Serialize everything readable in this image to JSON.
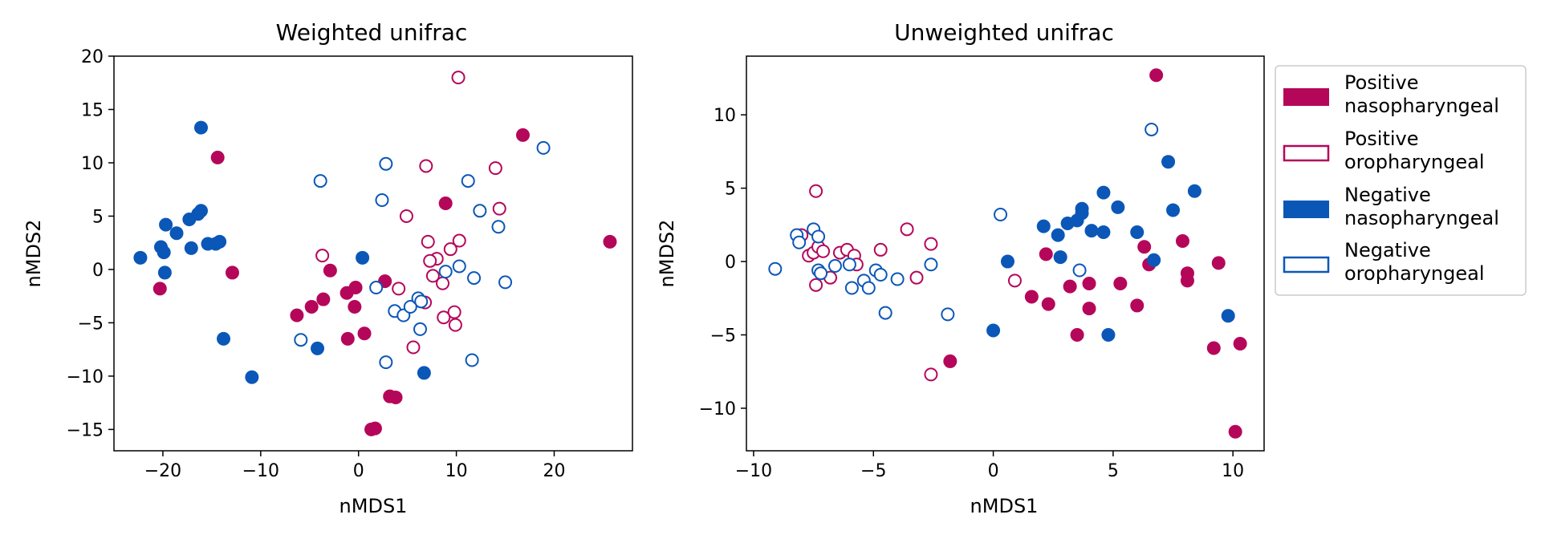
{
  "colors": {
    "positive": "#b5075a",
    "negative": "#0b57b8"
  },
  "legend": {
    "placement": "right of second panel",
    "items": [
      {
        "line1": "Positive",
        "line2": "nasopharyngeal",
        "color": "#b5075a",
        "filled": true
      },
      {
        "line1": "Positive",
        "line2": "oropharyngeal",
        "color": "#b5075a",
        "filled": false
      },
      {
        "line1": "Negative",
        "line2": "nasopharyngeal",
        "color": "#0b57b8",
        "filled": true
      },
      {
        "line1": "Negative",
        "line2": "oropharyngeal",
        "color": "#0b57b8",
        "filled": false
      }
    ]
  },
  "chart_data": [
    {
      "type": "scatter",
      "title": "Weighted unifrac",
      "xlabel": "nMDS1",
      "ylabel": "nMDS2",
      "xlim": [
        -25,
        28
      ],
      "ylim": [
        -17,
        20
      ],
      "xticks": [
        -20,
        -10,
        0,
        10,
        20
      ],
      "xtick_labels": [
        "−20",
        "−10",
        "0",
        "10",
        "20"
      ],
      "yticks": [
        -15,
        -10,
        -5,
        0,
        5,
        10,
        15,
        20
      ],
      "ytick_labels": [
        "−15",
        "−10",
        "−5",
        "0",
        "5",
        "10",
        "15",
        "20"
      ],
      "grid": false,
      "series": [
        {
          "name": "Positive nasopharyngeal",
          "color": "#b5075a",
          "filled": true,
          "points": [
            [
              -14.4,
              10.5
            ],
            [
              -20.3,
              -1.8
            ],
            [
              -12.9,
              -0.3
            ],
            [
              -6.3,
              -4.3
            ],
            [
              -4.8,
              -3.5
            ],
            [
              -3.6,
              -2.8
            ],
            [
              -2.9,
              -0.1
            ],
            [
              -1.2,
              -2.2
            ],
            [
              -0.3,
              -1.7
            ],
            [
              -0.4,
              -3.5
            ],
            [
              0.6,
              -6.0
            ],
            [
              -1.1,
              -6.5
            ],
            [
              2.7,
              -1.1
            ],
            [
              3.2,
              -11.9
            ],
            [
              3.8,
              -12.0
            ],
            [
              1.3,
              -15.0
            ],
            [
              1.7,
              -14.9
            ],
            [
              8.9,
              6.2
            ],
            [
              16.8,
              12.6
            ],
            [
              25.7,
              2.6
            ]
          ]
        },
        {
          "name": "Positive oropharyngeal",
          "color": "#b5075a",
          "filled": false,
          "points": [
            [
              10.2,
              18.0
            ],
            [
              6.9,
              9.7
            ],
            [
              14.0,
              9.5
            ],
            [
              14.4,
              5.7
            ],
            [
              4.9,
              5.0
            ],
            [
              7.1,
              2.6
            ],
            [
              10.3,
              2.7
            ],
            [
              9.4,
              1.9
            ],
            [
              8.0,
              1.0
            ],
            [
              7.3,
              0.8
            ],
            [
              7.6,
              -0.6
            ],
            [
              -3.7,
              1.3
            ],
            [
              4.1,
              -1.8
            ],
            [
              8.6,
              -1.3
            ],
            [
              6.8,
              -3.1
            ],
            [
              8.7,
              -4.5
            ],
            [
              9.8,
              -4.0
            ],
            [
              9.9,
              -5.2
            ],
            [
              5.6,
              -7.3
            ]
          ]
        },
        {
          "name": "Negative nasopharyngeal",
          "color": "#0b57b8",
          "filled": true,
          "points": [
            [
              -16.1,
              13.3
            ],
            [
              -22.3,
              1.1
            ],
            [
              -20.2,
              2.1
            ],
            [
              -19.9,
              1.6
            ],
            [
              -19.7,
              4.2
            ],
            [
              -19.8,
              -0.3
            ],
            [
              -18.6,
              3.4
            ],
            [
              -17.3,
              4.7
            ],
            [
              -17.1,
              2.0
            ],
            [
              -16.4,
              5.2
            ],
            [
              -16.1,
              5.5
            ],
            [
              -15.4,
              2.4
            ],
            [
              -14.6,
              2.4
            ],
            [
              -14.2,
              2.6
            ],
            [
              -13.8,
              -6.5
            ],
            [
              -10.9,
              -10.1
            ],
            [
              -4.2,
              -7.4
            ],
            [
              0.4,
              1.1
            ],
            [
              6.7,
              -9.7
            ]
          ]
        },
        {
          "name": "Negative oropharyngeal",
          "color": "#0b57b8",
          "filled": false,
          "points": [
            [
              -3.9,
              8.3
            ],
            [
              2.8,
              9.9
            ],
            [
              2.4,
              6.5
            ],
            [
              11.2,
              8.3
            ],
            [
              12.4,
              5.5
            ],
            [
              14.3,
              4.0
            ],
            [
              18.9,
              11.4
            ],
            [
              10.3,
              0.3
            ],
            [
              8.9,
              -0.2
            ],
            [
              11.8,
              -0.8
            ],
            [
              15.0,
              -1.2
            ],
            [
              1.8,
              -1.7
            ],
            [
              3.7,
              -3.9
            ],
            [
              4.6,
              -4.3
            ],
            [
              5.3,
              -3.5
            ],
            [
              6.1,
              -2.7
            ],
            [
              6.4,
              -3.0
            ],
            [
              6.3,
              -5.6
            ],
            [
              2.8,
              -8.7
            ],
            [
              11.6,
              -8.5
            ],
            [
              -5.9,
              -6.6
            ]
          ]
        }
      ]
    },
    {
      "type": "scatter",
      "title": "Unweighted unifrac",
      "xlabel": "nMDS1",
      "ylabel": "nMDS2",
      "xlim": [
        -10.3,
        11.3
      ],
      "ylim": [
        -12.9,
        14.0
      ],
      "xticks": [
        -10,
        -5,
        0,
        5,
        10
      ],
      "xtick_labels": [
        "−10",
        "−5",
        "0",
        "5",
        "10"
      ],
      "yticks": [
        -10,
        -5,
        0,
        5,
        10
      ],
      "ytick_labels": [
        "−10",
        "−5",
        "0",
        "5",
        "10"
      ],
      "grid": false,
      "series": [
        {
          "name": "Positive nasopharyngeal",
          "color": "#b5075a",
          "filled": true,
          "points": [
            [
              6.8,
              12.7
            ],
            [
              -1.8,
              -6.8
            ],
            [
              1.6,
              -2.4
            ],
            [
              2.2,
              0.5
            ],
            [
              2.3,
              -2.9
            ],
            [
              3.2,
              -1.7
            ],
            [
              3.5,
              -5.0
            ],
            [
              4.0,
              -1.5
            ],
            [
              4.0,
              -3.2
            ],
            [
              5.3,
              -1.5
            ],
            [
              6.0,
              -3.0
            ],
            [
              6.3,
              1.0
            ],
            [
              6.5,
              -0.2
            ],
            [
              7.9,
              1.4
            ],
            [
              8.1,
              -0.8
            ],
            [
              8.1,
              -1.3
            ],
            [
              9.2,
              -5.9
            ],
            [
              9.4,
              -0.1
            ],
            [
              10.3,
              -5.6
            ],
            [
              10.1,
              -11.6
            ]
          ]
        },
        {
          "name": "Positive oropharyngeal",
          "color": "#b5075a",
          "filled": false,
          "points": [
            [
              -7.4,
              4.8
            ],
            [
              -8.0,
              1.8
            ],
            [
              -7.7,
              0.4
            ],
            [
              -7.5,
              0.6
            ],
            [
              -7.3,
              1.0
            ],
            [
              -7.1,
              0.7
            ],
            [
              -6.8,
              -1.1
            ],
            [
              -6.4,
              0.6
            ],
            [
              -6.1,
              0.8
            ],
            [
              -5.8,
              0.4
            ],
            [
              -5.7,
              -0.2
            ],
            [
              -7.4,
              -1.6
            ],
            [
              -4.7,
              0.8
            ],
            [
              -3.6,
              2.2
            ],
            [
              -3.2,
              -1.1
            ],
            [
              -2.6,
              1.2
            ],
            [
              -2.6,
              -7.7
            ],
            [
              0.9,
              -1.3
            ]
          ]
        },
        {
          "name": "Negative nasopharyngeal",
          "color": "#0b57b8",
          "filled": true,
          "points": [
            [
              0.6,
              0.0
            ],
            [
              0.0,
              -4.7
            ],
            [
              2.1,
              2.4
            ],
            [
              2.7,
              1.8
            ],
            [
              2.8,
              0.3
            ],
            [
              3.1,
              2.6
            ],
            [
              3.5,
              2.8
            ],
            [
              3.7,
              3.6
            ],
            [
              3.7,
              3.3
            ],
            [
              4.1,
              2.1
            ],
            [
              4.6,
              4.7
            ],
            [
              4.6,
              2.0
            ],
            [
              4.8,
              -5.0
            ],
            [
              5.2,
              3.7
            ],
            [
              6.0,
              2.0
            ],
            [
              6.7,
              0.1
            ],
            [
              7.3,
              6.8
            ],
            [
              7.5,
              3.5
            ],
            [
              8.4,
              4.8
            ],
            [
              9.8,
              -3.7
            ]
          ]
        },
        {
          "name": "Negative oropharyngeal",
          "color": "#0b57b8",
          "filled": false,
          "points": [
            [
              6.6,
              9.0
            ],
            [
              0.3,
              3.2
            ],
            [
              3.6,
              -0.6
            ],
            [
              -9.1,
              -0.5
            ],
            [
              -8.2,
              1.8
            ],
            [
              -8.1,
              1.3
            ],
            [
              -7.5,
              2.2
            ],
            [
              -7.3,
              1.7
            ],
            [
              -7.3,
              -0.6
            ],
            [
              -7.2,
              -0.8
            ],
            [
              -6.6,
              -0.3
            ],
            [
              -6.0,
              -0.2
            ],
            [
              -5.9,
              -1.8
            ],
            [
              -5.4,
              -1.3
            ],
            [
              -5.2,
              -1.8
            ],
            [
              -4.9,
              -0.6
            ],
            [
              -4.7,
              -0.9
            ],
            [
              -4.5,
              -3.5
            ],
            [
              -4.0,
              -1.2
            ],
            [
              -2.6,
              -0.2
            ],
            [
              -1.9,
              -3.6
            ]
          ]
        }
      ]
    }
  ]
}
